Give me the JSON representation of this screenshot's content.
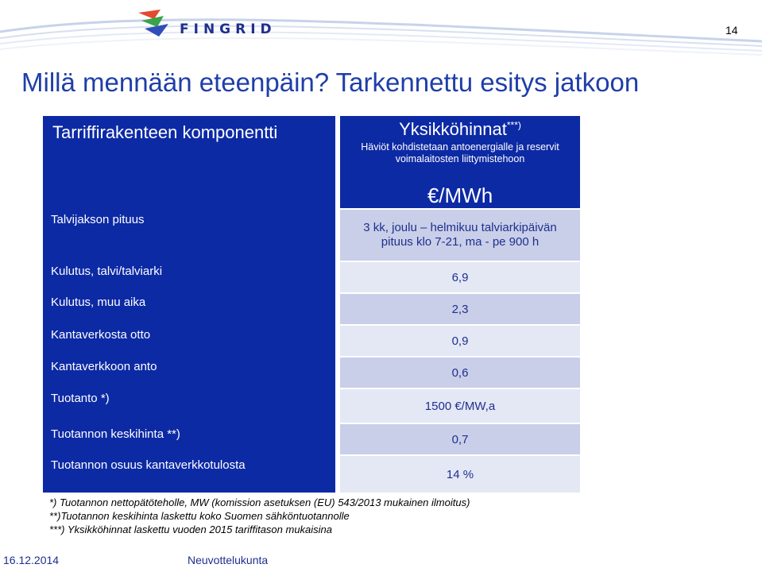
{
  "header": {
    "logo_text": "FINGRID",
    "page_number": "14"
  },
  "title": "Millä mennään eteenpäin? Tarkennettu esitys jatkoon",
  "table": {
    "left_header": "Tarriffirakenteen komponentti",
    "right_header": "Yksikköhinnat",
    "right_header_sup": "***)",
    "right_subheader": "Häviöt kohdistetaan antoenergialle ja reservit voimalaitosten liittymistehoon",
    "unit": "€/MWh",
    "rows": [
      {
        "component": "Talvijakson pituus",
        "value": "3 kk, joulu – helmikuu talviarkipäivän pituus klo 7-21, ma - pe 900 h"
      },
      {
        "component": "Kulutus, talvi/talviarki",
        "value": "6,9"
      },
      {
        "component": "Kulutus, muu aika",
        "value": "2,3"
      },
      {
        "component": "Kantaverkosta otto",
        "value": "0,9"
      },
      {
        "component": "Kantaverkkoon anto",
        "value": "0,6"
      },
      {
        "component": "Tuotanto *)",
        "value": "1500 €/MW,a"
      },
      {
        "component": "Tuotannon keskihinta **)",
        "value": "0,7"
      },
      {
        "component": "Tuotannon osuus kantaverkkotulosta",
        "value": "14 %"
      }
    ]
  },
  "footnotes": [
    "*)  Tuotannon nettopätöteholle, MW (komission asetuksen (EU) 543/2013 mukainen ilmoitus)",
    "**)Tuotannon keskihinta laskettu koko Suomen sähköntuotannolle",
    "***) Yksikköhinnat laskettu vuoden 2015 tariffitason mukaisina"
  ],
  "footer": {
    "date": "16.12.2014",
    "name": "Neuvottelukunta"
  },
  "colors": {
    "brand_blue": "#0d2aa5",
    "title_blue": "#1f3ea8",
    "cell_dark": "#c9cfe8",
    "cell_light": "#e4e8f5"
  }
}
